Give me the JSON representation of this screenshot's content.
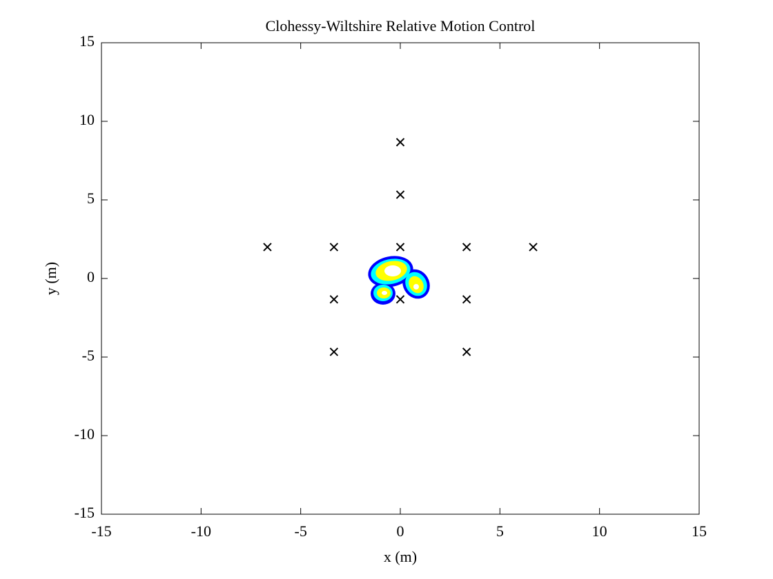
{
  "chart_data": {
    "type": "scatter",
    "title": "Clohessy-Wiltshire Relative Motion Control",
    "x_label": "x (m)",
    "y_label": "y (m)",
    "xlim": [
      -15,
      15
    ],
    "ylim": [
      -15,
      15
    ],
    "xticks": [
      -15,
      -10,
      -5,
      0,
      5,
      10,
      15
    ],
    "yticks": [
      -15,
      -10,
      -5,
      0,
      5,
      10,
      15
    ],
    "grid": false,
    "marker": "x",
    "color": "#000000",
    "x": [
      -6.67,
      -3.33,
      0,
      3.33,
      6.67,
      0,
      0,
      -3.33,
      0,
      3.33,
      -3.33,
      3.33
    ],
    "y": [
      2,
      2,
      2,
      2,
      2,
      8.67,
      5.33,
      -1.33,
      -1.33,
      -1.33,
      -4.67,
      -4.67
    ]
  }
}
